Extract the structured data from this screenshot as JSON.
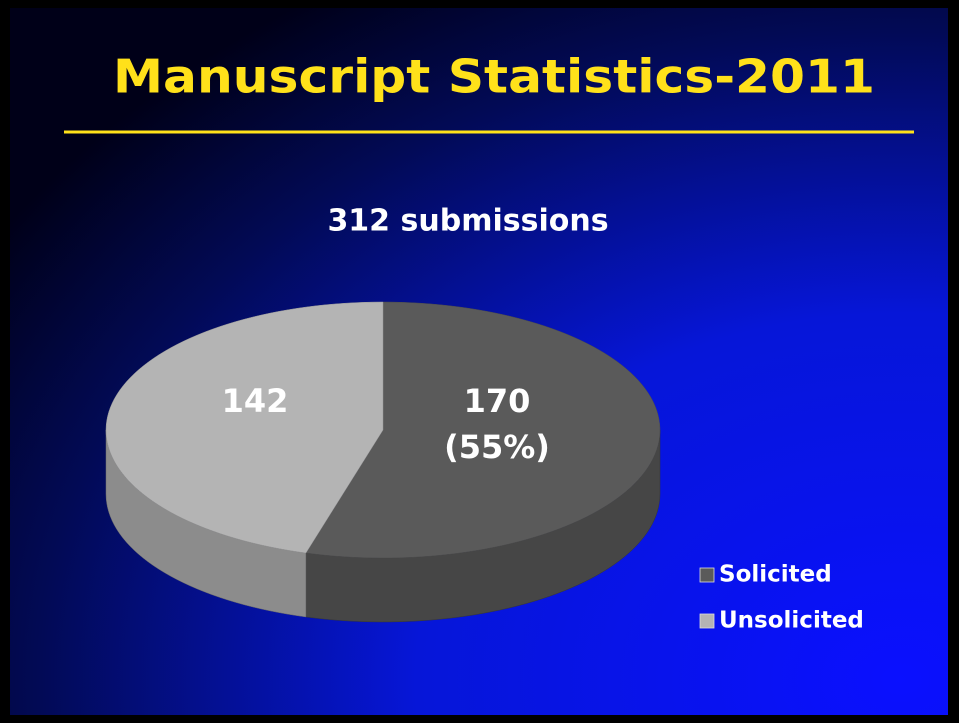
{
  "chart_data": {
    "type": "pie",
    "title": "Manuscript Statistics-2011",
    "subtitle": "312 submissions",
    "categories": [
      "Solicited",
      "Unsolicited"
    ],
    "values": [
      170,
      142
    ],
    "value_labels": [
      "170 (55%)",
      "142"
    ],
    "colors": [
      "#5a5a5a",
      "#b4b4b4"
    ],
    "legend": "right"
  }
}
